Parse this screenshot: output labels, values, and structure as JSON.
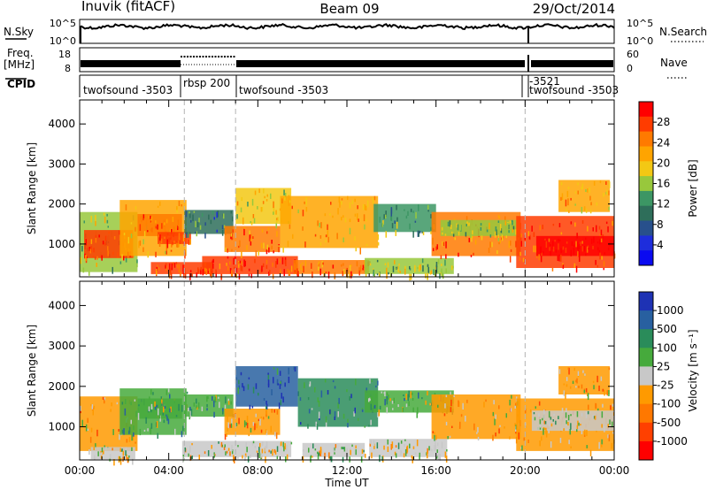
{
  "header": {
    "title_left": "Inuvik (fitACF)",
    "title_center": "Beam 09",
    "title_right": "29/Oct/2014"
  },
  "top_panels": {
    "nsky_label": "N.Sky",
    "nsky_ticks": [
      "10^5",
      "10^0"
    ],
    "nsearch_label": "N.Search",
    "nsearch_ticks": [
      "10^5",
      "10^0"
    ],
    "freq_label": "Freq.",
    "freq_unit": "[MHz]",
    "freq_ticks": [
      "18",
      "8"
    ],
    "nave_label": "Nave",
    "nave_ticks": [
      "60",
      "0"
    ],
    "cpid_label": "CPID",
    "cpid_segments": [
      {
        "name": "twofsound -3503",
        "start_hour": 0,
        "end_hour": 4.7
      },
      {
        "name": "rbsp 200",
        "start_hour": 4.7,
        "end_hour": 7.0
      },
      {
        "name": "twofsound -3503",
        "start_hour": 7.0,
        "end_hour": 20.0
      },
      {
        "name": "-3521",
        "start_hour": 20.0,
        "end_hour": 20.15
      },
      {
        "name": "twofsound -3503",
        "start_hour": 20.15,
        "end_hour": 24
      }
    ]
  },
  "panel_power": {
    "ylabel": "Slant Range [km]",
    "colorbar_label": "Power [dB]",
    "colorbar_ticks": [
      "28",
      "24",
      "20",
      "16",
      "12",
      "8",
      "4"
    ],
    "colorbar_colors": [
      "#ff0000",
      "#ff3c00",
      "#ff7a00",
      "#ffa400",
      "#f3c814",
      "#98c83c",
      "#3c9664",
      "#2e6e5a",
      "#28508c",
      "#1e2ddc",
      "#0a0af0"
    ]
  },
  "panel_velocity": {
    "ylabel": "Slant Range [km]",
    "colorbar_label": "Velocity [m s⁻¹]",
    "colorbar_ticks": [
      "1000",
      "500",
      "100",
      "25",
      "-25",
      "-100",
      "-500",
      "-1000"
    ],
    "colorbar_colors": [
      "#1e32b4",
      "#2860a0",
      "#2a8c5a",
      "#46aa3c",
      "#c8c8c8",
      "#ff9a00",
      "#ff7800",
      "#ff4000",
      "#ff0000"
    ]
  },
  "x_axis": {
    "label": "Time UT",
    "ticks": [
      "00:00",
      "04:00",
      "08:00",
      "12:00",
      "16:00",
      "20:00",
      "00:00"
    ]
  },
  "chart_data": {
    "type": "heatmap",
    "title": "Inuvik (fitACF)  Beam 09  29/Oct/2014",
    "xlabel": "Time UT",
    "ylabel": "Slant Range [km]",
    "x_range_hours": [
      0,
      24
    ],
    "y_range_km": [
      180,
      4600
    ],
    "y_ticks_km": [
      1000,
      2000,
      3000,
      4000
    ],
    "panels": [
      {
        "name": "Power",
        "unit": "dB",
        "color_scale": [
          0,
          30
        ],
        "regions": [
          {
            "t0": 0.0,
            "t1": 2.6,
            "r0": 300,
            "r1": 1800,
            "v": 16
          },
          {
            "t0": 0.2,
            "t1": 2.4,
            "r0": 650,
            "r1": 1350,
            "v": 26
          },
          {
            "t0": 1.8,
            "t1": 4.8,
            "r0": 700,
            "r1": 2100,
            "v": 20
          },
          {
            "t0": 2.6,
            "t1": 4.6,
            "r0": 1200,
            "r1": 1750,
            "v": 24
          },
          {
            "t0": 3.5,
            "t1": 5.0,
            "r0": 1000,
            "r1": 1300,
            "v": 28
          },
          {
            "t0": 3.2,
            "t1": 6.0,
            "r0": 250,
            "r1": 550,
            "v": 26
          },
          {
            "t0": 4.7,
            "t1": 6.9,
            "r0": 1250,
            "r1": 1850,
            "v": 9
          },
          {
            "t0": 5.5,
            "t1": 9.8,
            "r0": 250,
            "r1": 700,
            "v": 28
          },
          {
            "t0": 6.5,
            "t1": 9.0,
            "r0": 800,
            "r1": 1450,
            "v": 24
          },
          {
            "t0": 7.0,
            "t1": 9.5,
            "r0": 1500,
            "r1": 2400,
            "v": 18
          },
          {
            "t0": 9.0,
            "t1": 13.4,
            "r0": 900,
            "r1": 2200,
            "v": 22
          },
          {
            "t0": 9.6,
            "t1": 13.0,
            "r0": 250,
            "r1": 600,
            "v": 24
          },
          {
            "t0": 12.8,
            "t1": 16.8,
            "r0": 250,
            "r1": 650,
            "v": 16
          },
          {
            "t0": 13.2,
            "t1": 16.0,
            "r0": 1300,
            "r1": 2000,
            "v": 12
          },
          {
            "t0": 15.8,
            "t1": 19.8,
            "r0": 700,
            "r1": 1800,
            "v": 24
          },
          {
            "t0": 16.2,
            "t1": 19.6,
            "r0": 1200,
            "r1": 1600,
            "v": 14
          },
          {
            "t0": 19.6,
            "t1": 24.0,
            "r0": 400,
            "r1": 1700,
            "v": 26
          },
          {
            "t0": 20.5,
            "t1": 24.0,
            "r0": 700,
            "r1": 1200,
            "v": 29
          },
          {
            "t0": 21.5,
            "t1": 23.8,
            "r0": 1800,
            "r1": 2600,
            "v": 22
          }
        ]
      },
      {
        "name": "Velocity",
        "unit": "m s-1",
        "color_scale": [
          -1000,
          1000
        ],
        "regions": [
          {
            "t0": 0.0,
            "t1": 2.6,
            "r0": 400,
            "r1": 1750,
            "v": -300
          },
          {
            "t0": 0.5,
            "t1": 2.5,
            "r0": 200,
            "r1": 500,
            "v": 0
          },
          {
            "t0": 1.8,
            "t1": 4.8,
            "r0": 800,
            "r1": 1950,
            "v": 150
          },
          {
            "t0": 2.6,
            "t1": 4.6,
            "r0": 1200,
            "r1": 1700,
            "v": 350
          },
          {
            "t0": 4.7,
            "t1": 6.9,
            "r0": 1250,
            "r1": 1800,
            "v": 250
          },
          {
            "t0": 4.6,
            "t1": 9.5,
            "r0": 250,
            "r1": 650,
            "v": 0
          },
          {
            "t0": 6.5,
            "t1": 9.0,
            "r0": 800,
            "r1": 1450,
            "v": -150
          },
          {
            "t0": 7.0,
            "t1": 9.8,
            "r0": 1500,
            "r1": 2500,
            "v": 700
          },
          {
            "t0": 9.8,
            "t1": 13.4,
            "r0": 1000,
            "r1": 2200,
            "v": 450
          },
          {
            "t0": 10.0,
            "t1": 12.8,
            "r0": 250,
            "r1": 600,
            "v": 0
          },
          {
            "t0": 12.8,
            "t1": 16.8,
            "r0": 1350,
            "r1": 1900,
            "v": 200
          },
          {
            "t0": 13.0,
            "t1": 16.5,
            "r0": 250,
            "r1": 700,
            "v": 0
          },
          {
            "t0": 15.8,
            "t1": 19.8,
            "r0": 700,
            "r1": 1800,
            "v": -350
          },
          {
            "t0": 19.6,
            "t1": 24.0,
            "r0": 400,
            "r1": 1700,
            "v": -250
          },
          {
            "t0": 20.3,
            "t1": 24.0,
            "r0": 900,
            "r1": 1400,
            "v": 0
          },
          {
            "t0": 21.5,
            "t1": 23.8,
            "r0": 1800,
            "r1": 2500,
            "v": -300
          }
        ]
      }
    ],
    "nsky_level": "high (~10^4)",
    "frequency_mhz_range": [
      8,
      18
    ],
    "nave_range": [
      0,
      60
    ]
  }
}
